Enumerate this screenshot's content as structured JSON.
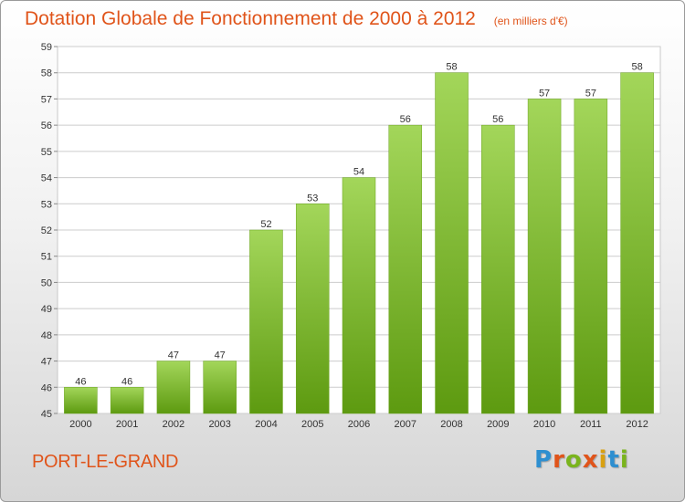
{
  "header": {
    "title": "Dotation Globale de Fonctionnement de 2000 à 2012",
    "subtitle": "(en milliers d'€)"
  },
  "footer": {
    "town": "PORT-LE-GRAND",
    "logo": {
      "text": "Proxiti",
      "letter_colors": [
        "#2e8fd0",
        "#e0541a",
        "#7ab41d",
        "#e0541a",
        "#d9a010",
        "#2e8fd0",
        "#7ab41d"
      ]
    }
  },
  "chart_data": {
    "type": "bar",
    "categories": [
      "2000",
      "2001",
      "2002",
      "2003",
      "2004",
      "2005",
      "2006",
      "2007",
      "2008",
      "2009",
      "2010",
      "2011",
      "2012"
    ],
    "values": [
      46,
      46,
      47,
      47,
      52,
      53,
      54,
      56,
      58,
      56,
      57,
      57,
      58
    ],
    "data_labels": [
      "46",
      "46",
      "47",
      "47",
      "52",
      "53",
      "54",
      "56",
      "58",
      "56",
      "57",
      "57",
      "58"
    ],
    "title": "Dotation Globale de Fonctionnement de 2000 à 2012",
    "subtitle": "(en milliers d'€)",
    "xlabel": "",
    "ylabel": "",
    "ylim": [
      45,
      59
    ],
    "yticks": [
      45,
      46,
      47,
      48,
      49,
      50,
      51,
      52,
      53,
      54,
      55,
      56,
      57,
      58,
      59
    ],
    "grid": true,
    "colors": {
      "bar_light": "#a3d65a",
      "bar_dark": "#5d9a10",
      "grid": "#cccccc"
    }
  }
}
